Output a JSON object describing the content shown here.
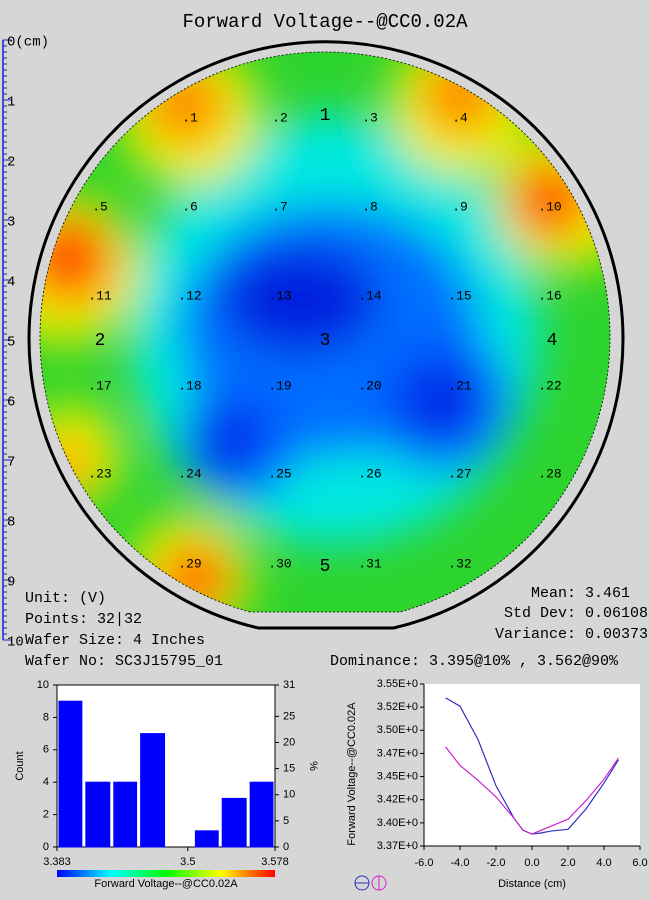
{
  "title": "Forward Voltage--@CC0.02A",
  "wafer_map": {
    "ruler": {
      "ylim": [
        0,
        10
      ],
      "ticks": [
        {
          "value": 0,
          "label": "0(cm)"
        },
        1,
        2,
        3,
        4,
        5,
        6,
        7,
        8,
        9,
        10
      ]
    },
    "points": [
      ".1",
      ".2",
      ".3",
      ".4",
      ".5",
      ".6",
      ".7",
      ".8",
      ".9",
      ".10",
      ".11",
      ".12",
      ".13",
      ".14",
      ".15",
      ".16",
      ".17",
      ".18",
      ".19",
      ".20",
      ".21",
      ".22",
      ".23",
      ".24",
      ".25",
      ".26",
      ".27",
      ".28",
      ".29",
      ".30",
      ".31",
      ".32"
    ],
    "zones": [
      "1",
      "2",
      "3",
      "4",
      "5"
    ]
  },
  "stats": {
    "unit": "Unit: (V)",
    "points": "Points: 32|32",
    "wafer_size": "Wafer Size: 4 Inches",
    "wafer_no": "Wafer No: SC3J15795_01",
    "mean": "Mean: 3.461",
    "std_dev": "Std Dev: 0.06108",
    "variance": "Variance: 0.00373",
    "dominance": "Dominance: 3.395@10% , 3.562@90%"
  },
  "chart_data": [
    {
      "type": "histogram",
      "bins": [
        3.383,
        3.407,
        3.432,
        3.456,
        3.481,
        3.505,
        3.529,
        3.554,
        3.578
      ],
      "values": [
        9,
        4,
        4,
        7,
        0,
        1,
        3,
        4
      ],
      "color": "#0000ff",
      "xlim": [
        3.383,
        3.578
      ],
      "xticks": [
        3.383,
        3.5,
        3.578
      ],
      "ylim": [
        0,
        10
      ],
      "yticks": [
        0,
        2,
        4,
        6,
        8,
        10
      ],
      "y2lim": [
        0,
        31
      ],
      "y2ticks": [
        0,
        5,
        10,
        15,
        20,
        25,
        31
      ],
      "ylabel": "Count",
      "y2label": "%",
      "colorbar_label": "Forward Voltage--@CC0.02A"
    },
    {
      "type": "line",
      "x": [
        -4.8,
        -4,
        -3,
        -2,
        -1,
        -0.5,
        0,
        0.5,
        1,
        2,
        3,
        4,
        4.8
      ],
      "series": [
        {
          "color": "#3030c0",
          "values": [
            3.535,
            3.526,
            3.49,
            3.44,
            3.405,
            3.392,
            3.388,
            3.389,
            3.391,
            3.393,
            3.415,
            3.443,
            3.468
          ]
        },
        {
          "color": "#d020d0",
          "values": [
            3.482,
            3.462,
            3.446,
            3.428,
            3.405,
            3.392,
            3.388,
            3.392,
            3.396,
            3.404,
            3.424,
            3.447,
            3.47
          ]
        }
      ],
      "xlim": [
        -6,
        6
      ],
      "xticks": [
        {
          "value": -6,
          "label": "-6.0"
        },
        {
          "value": -4,
          "label": "-4.0"
        },
        {
          "value": -2,
          "label": "-2.0"
        },
        {
          "value": 0,
          "label": "0.0"
        },
        {
          "value": 2,
          "label": "2.0"
        },
        {
          "value": 4,
          "label": "4.0"
        },
        {
          "value": 6,
          "label": "6.0"
        }
      ],
      "ylim": [
        3.375,
        3.55
      ],
      "yticks": [
        {
          "value": 3.375,
          "label": "3.37E+0"
        },
        {
          "value": 3.4,
          "label": "3.40E+0"
        },
        {
          "value": 3.425,
          "label": "3.42E+0"
        },
        {
          "value": 3.45,
          "label": "3.45E+0"
        },
        {
          "value": 3.475,
          "label": "3.47E+0"
        },
        {
          "value": 3.5,
          "label": "3.50E+0"
        },
        {
          "value": 3.525,
          "label": "3.52E+0"
        },
        {
          "value": 3.55,
          "label": "3.55E+0"
        }
      ],
      "xlabel": "Distance (cm)",
      "ylabel": "Forward Voltage--@CC0.02A"
    }
  ]
}
